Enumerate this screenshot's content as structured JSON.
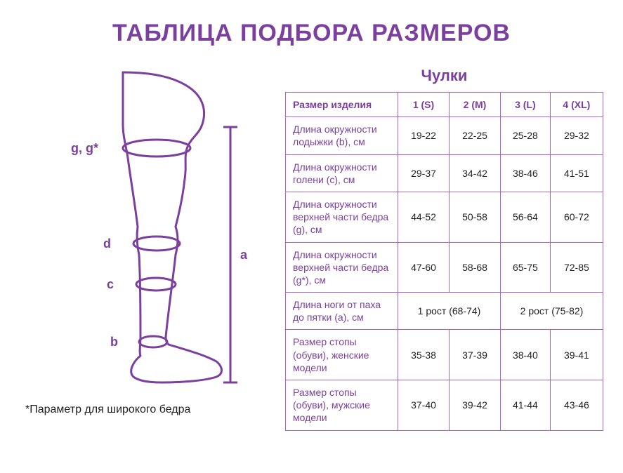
{
  "colors": {
    "purple": "#7b3f9d",
    "purpleBorder": "#a864c7",
    "white": "#ffffff",
    "black": "#222222"
  },
  "title": "ТАБЛИЦА ПОДБОРА РАЗМЕРОВ",
  "footnote": "*Параметр для широкого бедра",
  "diagram": {
    "labels": {
      "gg": "g, g*",
      "d": "d",
      "c": "c",
      "b": "b",
      "a": "a"
    }
  },
  "table": {
    "caption": "Чулки",
    "header": {
      "rowLabel": "Размер изделия",
      "cols": [
        "1 (S)",
        "2 (M)",
        "3 (L)",
        "4 (XL)"
      ]
    },
    "rows": [
      {
        "label": "Длина окружности лодыжки (b), см",
        "cells": [
          "19-22",
          "22-25",
          "25-28",
          "29-32"
        ]
      },
      {
        "label": "Длина окружности голени (c), см",
        "cells": [
          "29-37",
          "34-42",
          "38-46",
          "41-51"
        ]
      },
      {
        "label": "Длина окружности верхней части бедра (g), см",
        "cells": [
          "44-52",
          "50-58",
          "56-64",
          "60-72"
        ]
      },
      {
        "label": "Длина окружности верхней части бедра (g*), см",
        "cells": [
          "47-60",
          "58-68",
          "65-75",
          "72-85"
        ]
      },
      {
        "label": "Длина ноги от паха до пятки (a), см",
        "spans": [
          {
            "text": "1 рост (68-74)",
            "colspan": 2
          },
          {
            "text": "2 рост (75-82)",
            "colspan": 2
          }
        ]
      },
      {
        "label": "Размер стопы (обуви), женские модели",
        "cells": [
          "35-38",
          "37-39",
          "38-40",
          "39-41"
        ]
      },
      {
        "label": "Размер стопы (обуви), мужские модели",
        "cells": [
          "37-40",
          "39-42",
          "41-44",
          "43-46"
        ]
      }
    ]
  }
}
